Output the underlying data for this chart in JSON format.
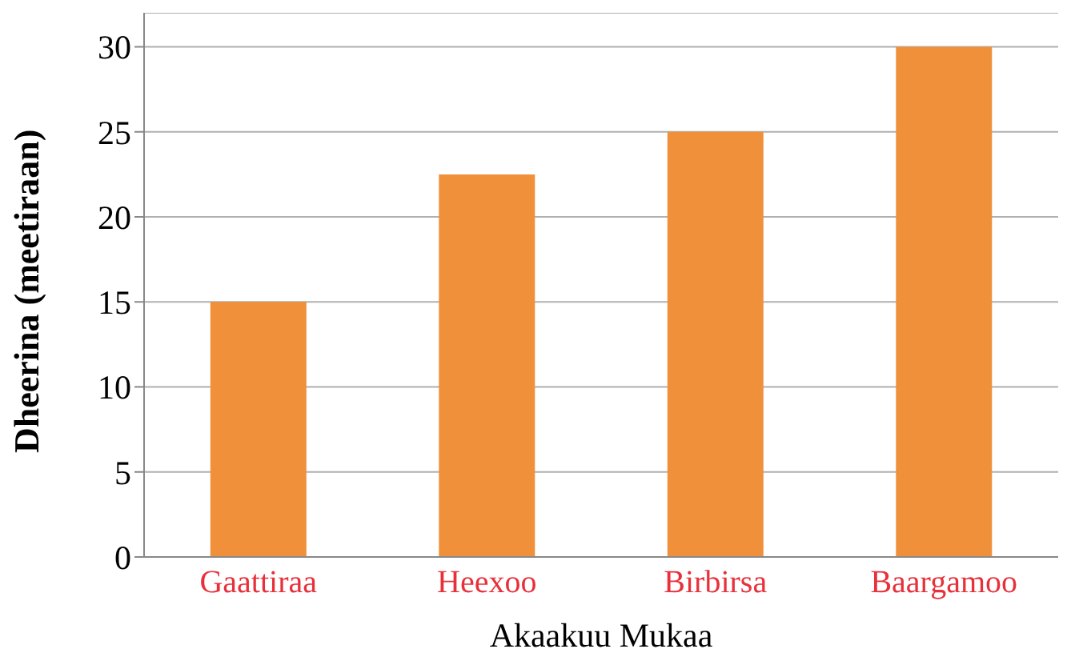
{
  "chart_data": {
    "type": "bar",
    "xlabel": "Akaakuu Mukaa",
    "ylabel": "Dheerina (meetiraan)",
    "categories": [
      "Gaattiraa",
      "Heexoo",
      "Birbirsa",
      "Baargamoo"
    ],
    "values": [
      15,
      22.5,
      25,
      30
    ],
    "color": "#f0903a",
    "ylim": [
      0,
      32
    ],
    "yticks": [
      0,
      5,
      10,
      15,
      20,
      25,
      30
    ],
    "grid": "y",
    "legend": false
  }
}
